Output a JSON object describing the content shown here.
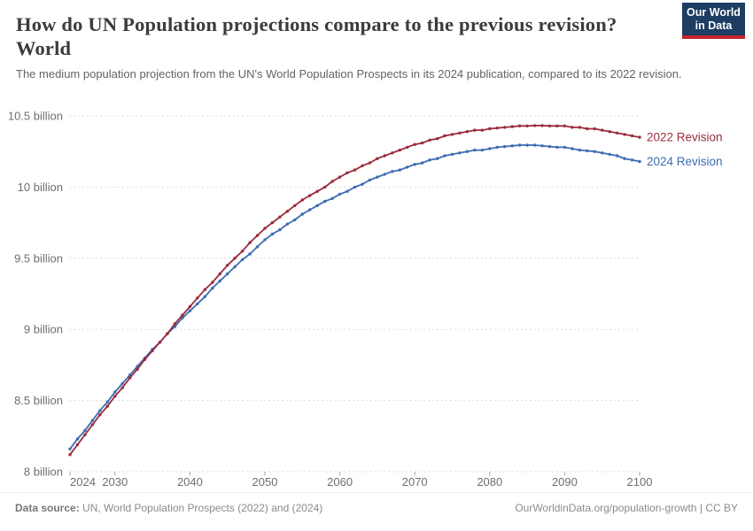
{
  "header": {
    "title_line1": "How do UN Population projections compare to the previous revision?",
    "title_line2": "World",
    "subtitle": "The medium population projection from the UN's World Population Prospects in its 2024 publication, compared to its 2022 revision.",
    "logo": {
      "line1": "Our World",
      "line2": "in Data",
      "bg": "#1d3d63",
      "accent": "#c5252d"
    }
  },
  "chart_data": {
    "type": "line",
    "xlabel": "",
    "ylabel": "",
    "xlim": [
      2024,
      2100
    ],
    "ylim": [
      8,
      10.5
    ],
    "grid": "horizontal-dashed",
    "legend_position": "end-of-line-labels",
    "xticks": [
      2024,
      2030,
      2040,
      2050,
      2060,
      2070,
      2080,
      2090,
      2100
    ],
    "yticks": [
      8,
      8.5,
      9,
      9.5,
      10,
      10.5
    ],
    "ytick_labels": [
      "8 billion",
      "8.5 billion",
      "9 billion",
      "9.5 billion",
      "10 billion",
      "10.5 billion"
    ],
    "x": [
      2024,
      2025,
      2026,
      2027,
      2028,
      2029,
      2030,
      2031,
      2032,
      2033,
      2034,
      2035,
      2036,
      2037,
      2038,
      2039,
      2040,
      2041,
      2042,
      2043,
      2044,
      2045,
      2046,
      2047,
      2048,
      2049,
      2050,
      2051,
      2052,
      2053,
      2054,
      2055,
      2056,
      2057,
      2058,
      2059,
      2060,
      2061,
      2062,
      2063,
      2064,
      2065,
      2066,
      2067,
      2068,
      2069,
      2070,
      2071,
      2072,
      2073,
      2074,
      2075,
      2076,
      2077,
      2078,
      2079,
      2080,
      2081,
      2082,
      2083,
      2084,
      2085,
      2086,
      2087,
      2088,
      2089,
      2090,
      2091,
      2092,
      2093,
      2094,
      2095,
      2096,
      2097,
      2098,
      2099,
      2100
    ],
    "unit": "billion",
    "series": [
      {
        "name": "2022 Revision",
        "color": "#9a2c3c",
        "values": [
          8.12,
          8.19,
          8.26,
          8.33,
          8.4,
          8.46,
          8.53,
          8.59,
          8.66,
          8.72,
          8.79,
          8.85,
          8.91,
          8.97,
          9.04,
          9.1,
          9.16,
          9.22,
          9.28,
          9.33,
          9.39,
          9.45,
          9.5,
          9.55,
          9.61,
          9.66,
          9.71,
          9.75,
          9.79,
          9.83,
          9.87,
          9.91,
          9.94,
          9.97,
          10.0,
          10.04,
          10.07,
          10.1,
          10.12,
          10.15,
          10.17,
          10.2,
          10.22,
          10.24,
          10.26,
          10.28,
          10.3,
          10.31,
          10.33,
          10.34,
          10.36,
          10.37,
          10.38,
          10.39,
          10.4,
          10.4,
          10.41,
          10.415,
          10.42,
          10.425,
          10.43,
          10.43,
          10.432,
          10.432,
          10.43,
          10.43,
          10.43,
          10.42,
          10.42,
          10.41,
          10.41,
          10.4,
          10.39,
          10.38,
          10.37,
          10.36,
          10.35
        ]
      },
      {
        "name": "2024 Revision",
        "color": "#3d6cb2",
        "values": [
          8.16,
          8.23,
          8.29,
          8.36,
          8.43,
          8.49,
          8.56,
          8.62,
          8.68,
          8.74,
          8.8,
          8.86,
          8.91,
          8.97,
          9.02,
          9.08,
          9.13,
          9.18,
          9.23,
          9.29,
          9.34,
          9.39,
          9.44,
          9.49,
          9.53,
          9.58,
          9.63,
          9.67,
          9.7,
          9.74,
          9.77,
          9.81,
          9.84,
          9.87,
          9.9,
          9.92,
          9.95,
          9.97,
          10.0,
          10.02,
          10.05,
          10.07,
          10.09,
          10.11,
          10.12,
          10.14,
          10.16,
          10.17,
          10.19,
          10.2,
          10.22,
          10.23,
          10.24,
          10.25,
          10.26,
          10.26,
          10.27,
          10.28,
          10.285,
          10.29,
          10.295,
          10.295,
          10.295,
          10.29,
          10.285,
          10.28,
          10.28,
          10.27,
          10.26,
          10.255,
          10.25,
          10.24,
          10.23,
          10.22,
          10.2,
          10.19,
          10.18
        ]
      }
    ]
  },
  "footer": {
    "datasource_label": "Data source:",
    "datasource_value": " UN, World Population Prospects (2022) and (2024)",
    "credit": "OurWorldinData.org/population-growth | CC BY"
  }
}
